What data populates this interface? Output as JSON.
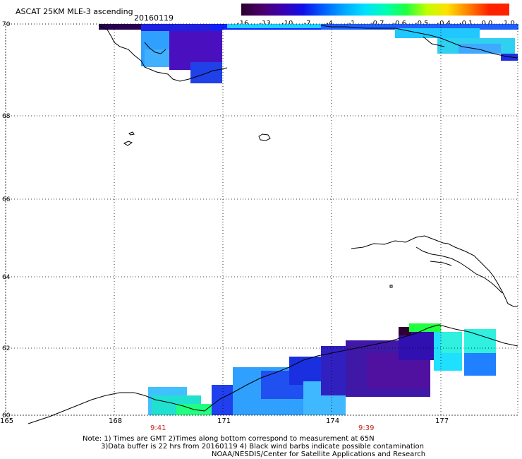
{
  "header": {
    "title": "ASCAT 25KM MLE-3 ascending",
    "date": "20160119"
  },
  "colorbar": {
    "labels": [
      "-16",
      "-13",
      "-10",
      "-7",
      "-4",
      "-1",
      "-0.7",
      "-0.6",
      "-0.5",
      "-0.4",
      "-0.1",
      "0.0",
      "1.0"
    ],
    "colors": [
      "#2a0030",
      "#4a0068",
      "#3c00b0",
      "#1010e8",
      "#0060ff",
      "#00a8ff",
      "#00e0ff",
      "#00ffb0",
      "#20ff40",
      "#c0ff00",
      "#ffe000",
      "#ff8000",
      "#ff2000"
    ]
  },
  "axes": {
    "lat_labels": [
      "70",
      "68",
      "66",
      "64",
      "62",
      "60"
    ],
    "lon_labels": [
      "165",
      "168",
      "171",
      "174",
      "177"
    ]
  },
  "times": [
    "9:41",
    "9:39"
  ],
  "notes": {
    "line1": "Note: 1) Times are GMT 2)Times along bottom correspond to measurement at 65N",
    "line2": "3)Data buffer is 22 hrs from 20160119 4) Black wind barbs indicate possible contamination",
    "line3": "NOAA/NESDIS/Center for Satellite Applications and Research"
  }
}
